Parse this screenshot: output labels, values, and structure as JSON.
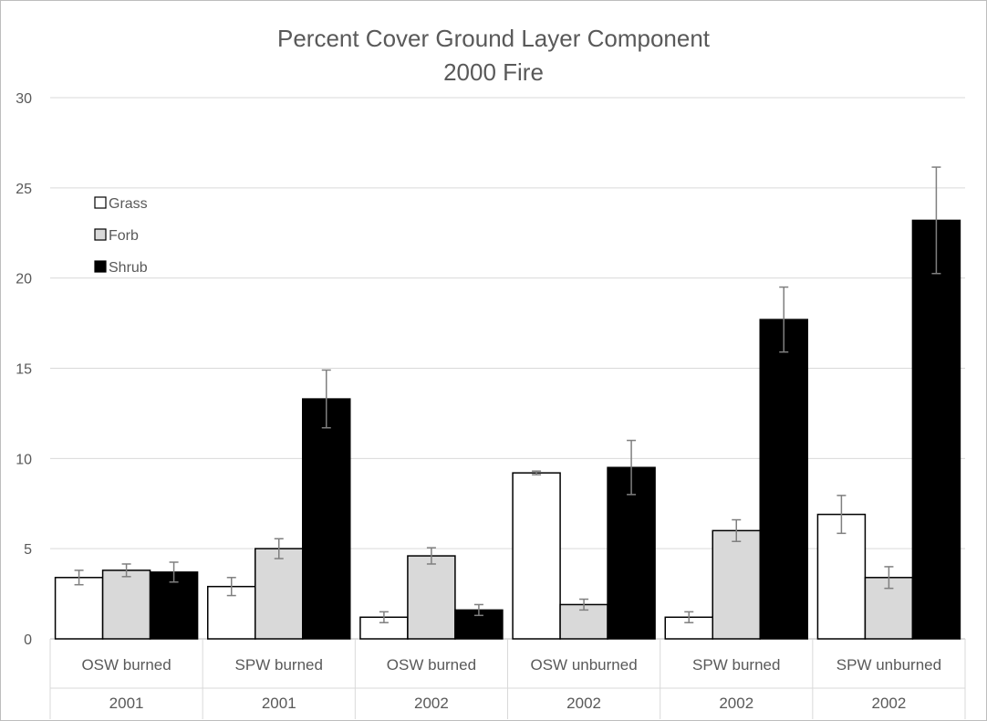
{
  "chart_data": {
    "type": "bar",
    "title": "Percent Cover Ground Layer Component",
    "subtitle": "2000 Fire",
    "categories": [
      {
        "label": "OSW burned",
        "year": "2001"
      },
      {
        "label": "SPW burned",
        "year": "2001"
      },
      {
        "label": "OSW burned",
        "year": "2002"
      },
      {
        "label": "OSW unburned",
        "year": "2002"
      },
      {
        "label": "SPW burned",
        "year": "2002"
      },
      {
        "label": "SPW unburned",
        "year": "2002"
      }
    ],
    "series": [
      {
        "name": "Grass",
        "color": "#ffffff",
        "values": [
          3.4,
          2.9,
          1.2,
          9.2,
          1.2,
          6.9
        ],
        "errors": [
          0.4,
          0.5,
          0.3,
          0.1,
          0.3,
          1.05
        ]
      },
      {
        "name": "Forb",
        "color": "#d9d9d9",
        "values": [
          3.8,
          5.0,
          4.6,
          1.9,
          6.0,
          3.4
        ],
        "errors": [
          0.35,
          0.55,
          0.45,
          0.3,
          0.6,
          0.6
        ]
      },
      {
        "name": "Shrub",
        "color": "#000000",
        "values": [
          3.7,
          13.3,
          1.6,
          9.5,
          17.7,
          23.2
        ],
        "errors": [
          0.55,
          1.6,
          0.3,
          1.5,
          1.8,
          2.95
        ]
      }
    ],
    "yticks": [
      0,
      5,
      10,
      15,
      20,
      25,
      30
    ],
    "ylim": [
      0,
      30
    ],
    "grid": true,
    "legend_position": "top-left",
    "error_bars": true
  }
}
